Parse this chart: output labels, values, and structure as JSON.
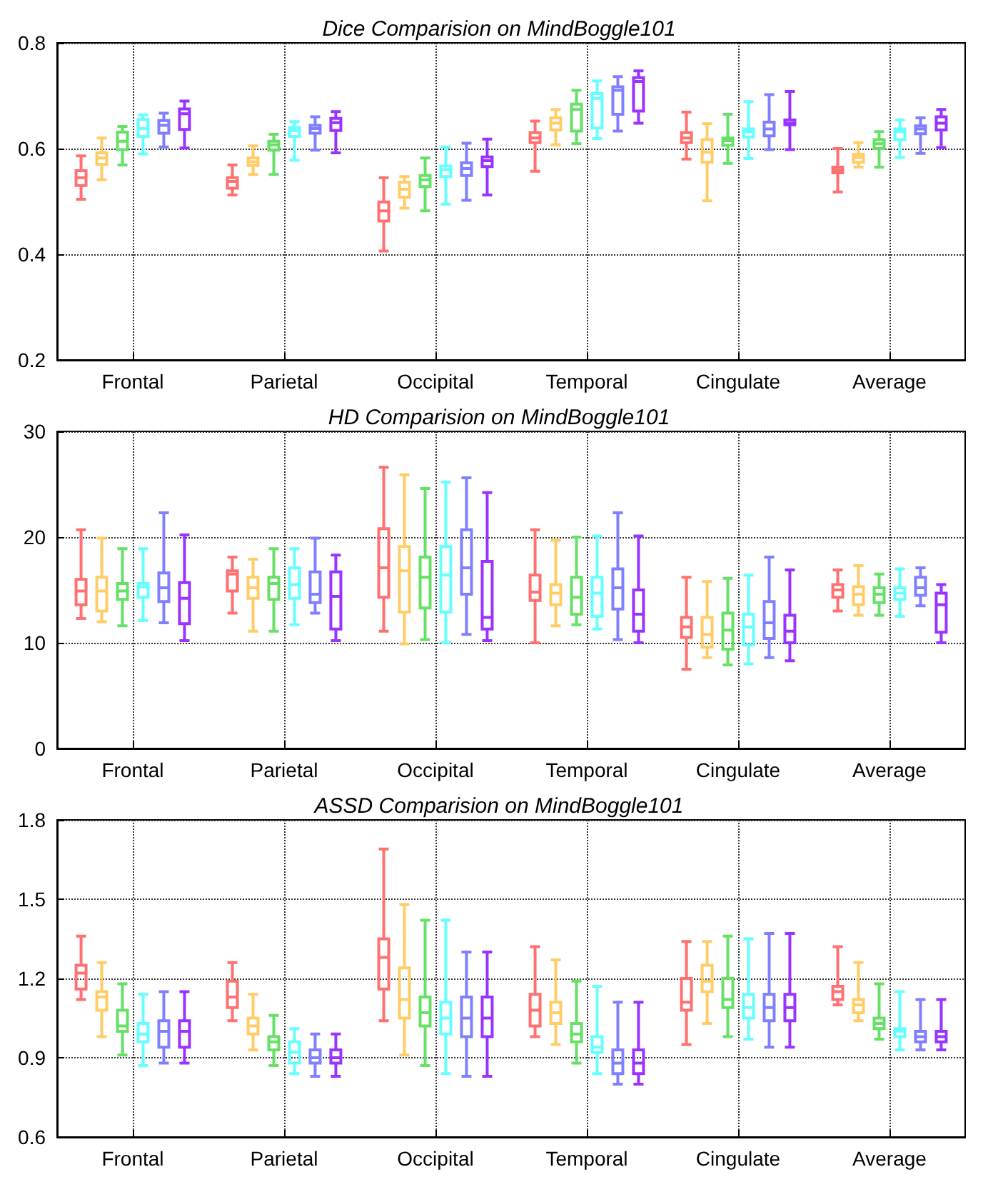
{
  "chart_data": [
    {
      "type": "box",
      "title": "Dice Comparision on MindBoggle101",
      "categories": [
        "Frontal",
        "Parietal",
        "Occipital",
        "Temporal",
        "Cingulate",
        "Average"
      ],
      "ylim": [
        0.2,
        0.8
      ],
      "yticks": [
        0.2,
        0.4,
        0.6,
        0.8
      ],
      "grid": true,
      "series": [
        {
          "color": "#ff7070",
          "boxes": [
            {
              "low": 0.504,
              "q1": 0.53,
              "median": 0.545,
              "q3": 0.558,
              "high": 0.586
            },
            {
              "low": 0.512,
              "q1": 0.525,
              "median": 0.538,
              "q3": 0.545,
              "high": 0.569
            },
            {
              "low": 0.406,
              "q1": 0.463,
              "median": 0.482,
              "q3": 0.499,
              "high": 0.545
            },
            {
              "low": 0.557,
              "q1": 0.611,
              "median": 0.62,
              "q3": 0.63,
              "high": 0.652
            },
            {
              "low": 0.58,
              "q1": 0.611,
              "median": 0.62,
              "q3": 0.63,
              "high": 0.669
            },
            {
              "low": 0.518,
              "q1": 0.554,
              "median": 0.559,
              "q3": 0.565,
              "high": 0.6
            }
          ]
        },
        {
          "color": "#ffcc66",
          "boxes": [
            {
              "low": 0.541,
              "q1": 0.57,
              "median": 0.582,
              "q3": 0.592,
              "high": 0.62
            },
            {
              "low": 0.551,
              "q1": 0.568,
              "median": 0.575,
              "q3": 0.582,
              "high": 0.605
            },
            {
              "low": 0.487,
              "q1": 0.508,
              "median": 0.523,
              "q3": 0.536,
              "high": 0.547
            },
            {
              "low": 0.607,
              "q1": 0.635,
              "median": 0.648,
              "q3": 0.658,
              "high": 0.674
            },
            {
              "low": 0.501,
              "q1": 0.574,
              "median": 0.593,
              "q3": 0.617,
              "high": 0.647
            },
            {
              "low": 0.565,
              "q1": 0.574,
              "median": 0.583,
              "q3": 0.589,
              "high": 0.611
            }
          ]
        },
        {
          "color": "#66e066",
          "boxes": [
            {
              "low": 0.569,
              "q1": 0.598,
              "median": 0.614,
              "q3": 0.631,
              "high": 0.642
            },
            {
              "low": 0.551,
              "q1": 0.597,
              "median": 0.607,
              "q3": 0.614,
              "high": 0.627
            },
            {
              "low": 0.482,
              "q1": 0.528,
              "median": 0.541,
              "q3": 0.549,
              "high": 0.582
            },
            {
              "low": 0.609,
              "q1": 0.633,
              "median": 0.674,
              "q3": 0.684,
              "high": 0.71
            },
            {
              "low": 0.572,
              "q1": 0.606,
              "median": 0.615,
              "q3": 0.62,
              "high": 0.665
            },
            {
              "low": 0.565,
              "q1": 0.6,
              "median": 0.609,
              "q3": 0.617,
              "high": 0.632
            }
          ]
        },
        {
          "color": "#66ffff",
          "boxes": [
            {
              "low": 0.59,
              "q1": 0.623,
              "median": 0.638,
              "q3": 0.655,
              "high": 0.664
            },
            {
              "low": 0.578,
              "q1": 0.623,
              "median": 0.634,
              "q3": 0.64,
              "high": 0.651
            },
            {
              "low": 0.495,
              "q1": 0.547,
              "median": 0.56,
              "q3": 0.567,
              "high": 0.603
            },
            {
              "low": 0.619,
              "q1": 0.639,
              "median": 0.695,
              "q3": 0.704,
              "high": 0.728
            },
            {
              "low": 0.581,
              "q1": 0.622,
              "median": 0.632,
              "q3": 0.637,
              "high": 0.689
            },
            {
              "low": 0.583,
              "q1": 0.617,
              "median": 0.632,
              "q3": 0.637,
              "high": 0.654
            }
          ]
        },
        {
          "color": "#7f7fff",
          "boxes": [
            {
              "low": 0.603,
              "q1": 0.629,
              "median": 0.644,
              "q3": 0.653,
              "high": 0.667
            },
            {
              "low": 0.597,
              "q1": 0.629,
              "median": 0.638,
              "q3": 0.644,
              "high": 0.66
            },
            {
              "low": 0.502,
              "q1": 0.549,
              "median": 0.562,
              "q3": 0.573,
              "high": 0.61
            },
            {
              "low": 0.633,
              "q1": 0.665,
              "median": 0.71,
              "q3": 0.717,
              "high": 0.736
            },
            {
              "low": 0.598,
              "q1": 0.624,
              "median": 0.637,
              "q3": 0.65,
              "high": 0.702
            },
            {
              "low": 0.591,
              "q1": 0.628,
              "median": 0.637,
              "q3": 0.643,
              "high": 0.658
            }
          ]
        },
        {
          "color": "#9933ff",
          "boxes": [
            {
              "low": 0.601,
              "q1": 0.636,
              "median": 0.666,
              "q3": 0.675,
              "high": 0.69
            },
            {
              "low": 0.592,
              "q1": 0.634,
              "median": 0.649,
              "q3": 0.657,
              "high": 0.67
            },
            {
              "low": 0.512,
              "q1": 0.566,
              "median": 0.577,
              "q3": 0.584,
              "high": 0.618
            },
            {
              "low": 0.648,
              "q1": 0.671,
              "median": 0.727,
              "q3": 0.734,
              "high": 0.747
            },
            {
              "low": 0.598,
              "q1": 0.645,
              "median": 0.648,
              "q3": 0.654,
              "high": 0.708
            },
            {
              "low": 0.602,
              "q1": 0.635,
              "median": 0.648,
              "q3": 0.66,
              "high": 0.674
            }
          ]
        }
      ]
    },
    {
      "type": "box",
      "title": "HD Comparision on MindBoggle101",
      "categories": [
        "Frontal",
        "Parietal",
        "Occipital",
        "Temporal",
        "Cingulate",
        "Average"
      ],
      "ylim": [
        0,
        30
      ],
      "yticks": [
        0,
        10,
        20,
        30
      ],
      "grid": true,
      "series": [
        {
          "color": "#ff7070",
          "boxes": [
            {
              "low": 12.3,
              "q1": 13.6,
              "median": 14.9,
              "q3": 16.0,
              "high": 20.7
            },
            {
              "low": 12.8,
              "q1": 14.9,
              "median": 16.5,
              "q3": 16.8,
              "high": 18.1
            },
            {
              "low": 11.1,
              "q1": 14.3,
              "median": 17.1,
              "q3": 20.8,
              "high": 26.6
            },
            {
              "low": 10.0,
              "q1": 14.0,
              "median": 14.8,
              "q3": 16.4,
              "high": 20.7
            },
            {
              "low": 7.5,
              "q1": 10.5,
              "median": 11.5,
              "q3": 12.4,
              "high": 16.2
            },
            {
              "low": 13.0,
              "q1": 14.3,
              "median": 15.0,
              "q3": 15.5,
              "high": 16.9
            }
          ]
        },
        {
          "color": "#ffcc66",
          "boxes": [
            {
              "low": 12.0,
              "q1": 13.0,
              "median": 14.9,
              "q3": 16.2,
              "high": 19.9
            },
            {
              "low": 11.1,
              "q1": 14.2,
              "median": 15.2,
              "q3": 16.2,
              "high": 17.9
            },
            {
              "low": 9.9,
              "q1": 12.9,
              "median": 16.8,
              "q3": 19.1,
              "high": 25.9
            },
            {
              "low": 11.6,
              "q1": 13.6,
              "median": 14.7,
              "q3": 15.5,
              "high": 19.7
            },
            {
              "low": 8.6,
              "q1": 9.6,
              "median": 10.8,
              "q3": 12.4,
              "high": 15.8
            },
            {
              "low": 12.6,
              "q1": 13.6,
              "median": 14.6,
              "q3": 15.3,
              "high": 17.3
            }
          ]
        },
        {
          "color": "#66e066",
          "boxes": [
            {
              "low": 11.6,
              "q1": 14.1,
              "median": 14.9,
              "q3": 15.6,
              "high": 18.9
            },
            {
              "low": 11.1,
              "q1": 14.1,
              "median": 15.6,
              "q3": 16.2,
              "high": 18.9
            },
            {
              "low": 10.3,
              "q1": 13.3,
              "median": 16.2,
              "q3": 18.1,
              "high": 24.6
            },
            {
              "low": 11.7,
              "q1": 12.7,
              "median": 14.3,
              "q3": 16.2,
              "high": 20.0
            },
            {
              "low": 7.9,
              "q1": 9.4,
              "median": 11.2,
              "q3": 12.8,
              "high": 16.1
            },
            {
              "low": 12.6,
              "q1": 13.8,
              "median": 14.6,
              "q3": 15.2,
              "high": 16.5
            }
          ]
        },
        {
          "color": "#66ffff",
          "boxes": [
            {
              "low": 12.1,
              "q1": 14.3,
              "median": 15.3,
              "q3": 15.6,
              "high": 18.9
            },
            {
              "low": 11.7,
              "q1": 14.2,
              "median": 15.5,
              "q3": 17.1,
              "high": 18.9
            },
            {
              "low": 10.0,
              "q1": 12.9,
              "median": 16.4,
              "q3": 19.1,
              "high": 25.2
            },
            {
              "low": 11.3,
              "q1": 12.5,
              "median": 14.7,
              "q3": 16.2,
              "high": 20.1
            },
            {
              "low": 8.0,
              "q1": 9.8,
              "median": 11.5,
              "q3": 12.7,
              "high": 16.4
            },
            {
              "low": 12.5,
              "q1": 14.1,
              "median": 14.7,
              "q3": 15.2,
              "high": 17.0
            }
          ]
        },
        {
          "color": "#7f7fff",
          "boxes": [
            {
              "low": 11.9,
              "q1": 13.9,
              "median": 15.2,
              "q3": 16.6,
              "high": 22.3
            },
            {
              "low": 12.8,
              "q1": 13.8,
              "median": 14.6,
              "q3": 16.7,
              "high": 19.9
            },
            {
              "low": 10.8,
              "q1": 14.6,
              "median": 17.1,
              "q3": 20.7,
              "high": 25.6
            },
            {
              "low": 10.3,
              "q1": 13.2,
              "median": 15.2,
              "q3": 17.0,
              "high": 22.3
            },
            {
              "low": 8.6,
              "q1": 10.4,
              "median": 11.9,
              "q3": 13.9,
              "high": 18.1
            },
            {
              "low": 13.5,
              "q1": 14.5,
              "median": 15.2,
              "q3": 16.2,
              "high": 17.1
            }
          ]
        },
        {
          "color": "#9933ff",
          "boxes": [
            {
              "low": 10.2,
              "q1": 11.8,
              "median": 14.2,
              "q3": 15.7,
              "high": 20.2
            },
            {
              "low": 10.2,
              "q1": 11.3,
              "median": 14.4,
              "q3": 16.7,
              "high": 18.3
            },
            {
              "low": 10.2,
              "q1": 11.3,
              "median": 12.4,
              "q3": 17.7,
              "high": 24.2
            },
            {
              "low": 10.0,
              "q1": 11.1,
              "median": 12.7,
              "q3": 15.0,
              "high": 20.1
            },
            {
              "low": 8.3,
              "q1": 10.0,
              "median": 11.1,
              "q3": 12.6,
              "high": 16.9
            },
            {
              "low": 10.0,
              "q1": 11.0,
              "median": 13.6,
              "q3": 14.7,
              "high": 15.5
            }
          ]
        }
      ]
    },
    {
      "type": "box",
      "title": "ASSD Comparision on MindBoggle101",
      "categories": [
        "Frontal",
        "Parietal",
        "Occipital",
        "Temporal",
        "Cingulate",
        "Average"
      ],
      "ylim": [
        0.6,
        1.8
      ],
      "yticks": [
        0.6,
        0.9,
        1.2,
        1.5,
        1.8
      ],
      "grid": true,
      "series": [
        {
          "color": "#ff7070",
          "boxes": [
            {
              "low": 1.12,
              "q1": 1.16,
              "median": 1.22,
              "q3": 1.25,
              "high": 1.36
            },
            {
              "low": 1.04,
              "q1": 1.09,
              "median": 1.13,
              "q3": 1.19,
              "high": 1.26
            },
            {
              "low": 1.04,
              "q1": 1.16,
              "median": 1.28,
              "q3": 1.35,
              "high": 1.69
            },
            {
              "low": 0.98,
              "q1": 1.02,
              "median": 1.08,
              "q3": 1.14,
              "high": 1.32
            },
            {
              "low": 0.95,
              "q1": 1.08,
              "median": 1.11,
              "q3": 1.2,
              "high": 1.34
            },
            {
              "low": 1.1,
              "q1": 1.12,
              "median": 1.15,
              "q3": 1.17,
              "high": 1.32
            }
          ]
        },
        {
          "color": "#ffcc66",
          "boxes": [
            {
              "low": 0.98,
              "q1": 1.08,
              "median": 1.13,
              "q3": 1.15,
              "high": 1.26
            },
            {
              "low": 0.93,
              "q1": 0.99,
              "median": 1.02,
              "q3": 1.05,
              "high": 1.14
            },
            {
              "low": 0.91,
              "q1": 1.05,
              "median": 1.12,
              "q3": 1.24,
              "high": 1.48
            },
            {
              "low": 0.95,
              "q1": 1.03,
              "median": 1.07,
              "q3": 1.11,
              "high": 1.27
            },
            {
              "low": 1.03,
              "q1": 1.15,
              "median": 1.19,
              "q3": 1.25,
              "high": 1.34
            },
            {
              "low": 1.04,
              "q1": 1.07,
              "median": 1.1,
              "q3": 1.12,
              "high": 1.26
            }
          ]
        },
        {
          "color": "#66e066",
          "boxes": [
            {
              "low": 0.91,
              "q1": 1.0,
              "median": 1.02,
              "q3": 1.08,
              "high": 1.18
            },
            {
              "low": 0.87,
              "q1": 0.93,
              "median": 0.96,
              "q3": 0.98,
              "high": 1.06
            },
            {
              "low": 0.87,
              "q1": 1.02,
              "median": 1.07,
              "q3": 1.13,
              "high": 1.42
            },
            {
              "low": 0.88,
              "q1": 0.96,
              "median": 0.99,
              "q3": 1.03,
              "high": 1.19
            },
            {
              "low": 0.98,
              "q1": 1.09,
              "median": 1.12,
              "q3": 1.2,
              "high": 1.36
            },
            {
              "low": 0.97,
              "q1": 1.01,
              "median": 1.03,
              "q3": 1.05,
              "high": 1.18
            }
          ]
        },
        {
          "color": "#66ffff",
          "boxes": [
            {
              "low": 0.87,
              "q1": 0.96,
              "median": 0.99,
              "q3": 1.03,
              "high": 1.14
            },
            {
              "low": 0.84,
              "q1": 0.88,
              "median": 0.92,
              "q3": 0.96,
              "high": 1.01
            },
            {
              "low": 0.84,
              "q1": 0.99,
              "median": 1.05,
              "q3": 1.11,
              "high": 1.42
            },
            {
              "low": 0.84,
              "q1": 0.92,
              "median": 0.94,
              "q3": 0.98,
              "high": 1.17
            },
            {
              "low": 0.97,
              "q1": 1.05,
              "median": 1.09,
              "q3": 1.14,
              "high": 1.35
            },
            {
              "low": 0.93,
              "q1": 0.98,
              "median": 1.0,
              "q3": 1.01,
              "high": 1.15
            }
          ]
        },
        {
          "color": "#7f7fff",
          "boxes": [
            {
              "low": 0.88,
              "q1": 0.94,
              "median": 1.0,
              "q3": 1.04,
              "high": 1.15
            },
            {
              "low": 0.83,
              "q1": 0.88,
              "median": 0.9,
              "q3": 0.93,
              "high": 0.99
            },
            {
              "low": 0.83,
              "q1": 0.98,
              "median": 1.05,
              "q3": 1.13,
              "high": 1.3
            },
            {
              "low": 0.8,
              "q1": 0.84,
              "median": 0.88,
              "q3": 0.93,
              "high": 1.11
            },
            {
              "low": 0.94,
              "q1": 1.04,
              "median": 1.09,
              "q3": 1.14,
              "high": 1.37
            },
            {
              "low": 0.93,
              "q1": 0.96,
              "median": 0.98,
              "q3": 1.0,
              "high": 1.12
            }
          ]
        },
        {
          "color": "#9933ff",
          "boxes": [
            {
              "low": 0.88,
              "q1": 0.94,
              "median": 1.0,
              "q3": 1.04,
              "high": 1.15
            },
            {
              "low": 0.83,
              "q1": 0.88,
              "median": 0.9,
              "q3": 0.93,
              "high": 0.99
            },
            {
              "low": 0.83,
              "q1": 0.98,
              "median": 1.05,
              "q3": 1.13,
              "high": 1.3
            },
            {
              "low": 0.8,
              "q1": 0.84,
              "median": 0.88,
              "q3": 0.93,
              "high": 1.11
            },
            {
              "low": 0.94,
              "q1": 1.04,
              "median": 1.09,
              "q3": 1.14,
              "high": 1.37
            },
            {
              "low": 0.93,
              "q1": 0.96,
              "median": 0.98,
              "q3": 1.0,
              "high": 1.12
            }
          ]
        }
      ]
    }
  ]
}
